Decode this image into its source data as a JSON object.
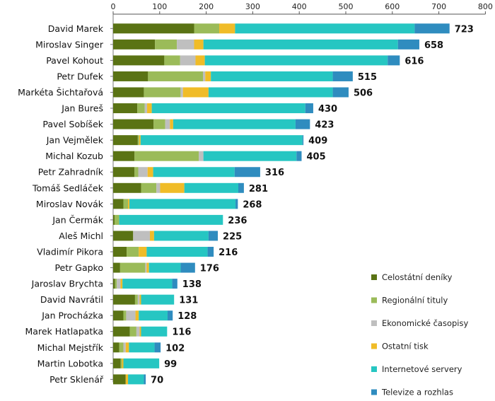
{
  "chart_data": {
    "type": "bar",
    "orientation": "horizontal",
    "stacked": true,
    "xlim": [
      0,
      800
    ],
    "x_ticks": [
      0,
      100,
      200,
      300,
      400,
      500,
      600,
      700,
      800
    ],
    "x_axis_position": "top",
    "grid": false,
    "legend_position": "bottom-right",
    "categories": [
      "David Marek",
      "Miroslav Singer",
      "Pavel Kohout",
      "Petr Dufek",
      "Markéta Šichtařová",
      "Jan Bureš",
      "Pavel Sobíšek",
      "Jan Vejmělek",
      "Michal Kozub",
      "Petr Zahradník",
      "Tomáš Sedláček",
      "Miroslav Novák",
      "Jan Čermák",
      "Aleš Michl",
      "Vladimír Pikora",
      "Petr Gapko",
      "Jaroslav Brychta",
      "David Navrátil",
      "Jan Procházka",
      "Marek Hatlapatka",
      "Michal Mejstřík",
      "Martin Lobotka",
      "Petr Sklenář"
    ],
    "totals": [
      723,
      658,
      616,
      515,
      506,
      430,
      423,
      409,
      405,
      316,
      281,
      268,
      236,
      225,
      216,
      176,
      138,
      131,
      128,
      116,
      102,
      99,
      70
    ],
    "series": [
      {
        "name": "Celostátní deníky",
        "color": "#5a7314",
        "values": [
          174,
          90,
          110,
          75,
          66,
          52,
          87,
          53,
          46,
          46,
          60,
          22,
          3,
          43,
          29,
          15,
          4,
          47,
          22,
          36,
          13,
          16,
          27
        ]
      },
      {
        "name": "Regionální tituly",
        "color": "#9bbb59",
        "values": [
          54,
          47,
          34,
          118,
          79,
          16,
          25,
          3,
          138,
          8,
          33,
          10,
          10,
          0,
          26,
          54,
          4,
          6,
          6,
          14,
          9,
          3,
          0
        ]
      },
      {
        "name": "Ekonomické časopisy",
        "color": "#bfbfbf",
        "values": [
          0,
          37,
          33,
          5,
          5,
          5,
          10,
          0,
          10,
          20,
          8,
          0,
          0,
          36,
          0,
          3,
          8,
          4,
          20,
          7,
          5,
          0,
          0
        ]
      },
      {
        "name": "Ostatní tisk",
        "color": "#f0bc28",
        "values": [
          34,
          20,
          20,
          12,
          55,
          10,
          7,
          3,
          0,
          12,
          52,
          3,
          0,
          9,
          17,
          5,
          4,
          3,
          7,
          3,
          7,
          3,
          5
        ]
      },
      {
        "name": "Internetové servery",
        "color": "#26c6c2",
        "values": [
          386,
          418,
          393,
          262,
          267,
          330,
          263,
          348,
          200,
          175,
          116,
          228,
          223,
          117,
          131,
          68,
          107,
          71,
          62,
          56,
          55,
          77,
          34
        ]
      },
      {
        "name": "Televize a rozhlas",
        "color": "#2f8cbf",
        "values": [
          75,
          46,
          26,
          43,
          34,
          17,
          31,
          2,
          11,
          55,
          12,
          5,
          0,
          20,
          13,
          31,
          11,
          0,
          11,
          0,
          13,
          0,
          4
        ]
      }
    ]
  }
}
